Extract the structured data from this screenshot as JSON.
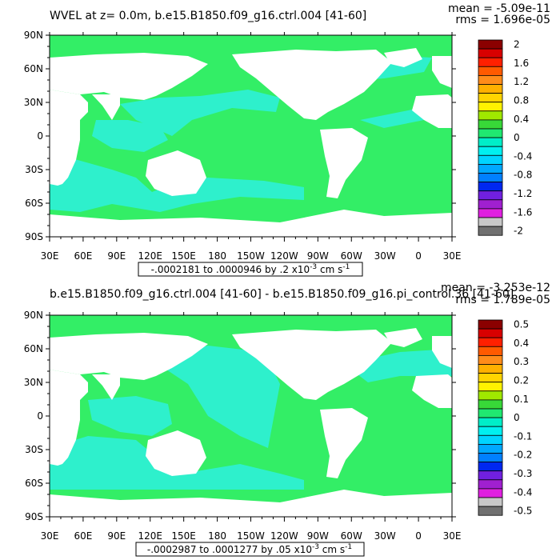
{
  "chart_data": [
    {
      "type": "heatmap",
      "title": "WVEL at z=    0.0m, b.e15.B1850.f09_g16.ctrl.004 [41-60]",
      "stats": {
        "mean": "mean = -5.09e-11",
        "rms": "rms = 1.696e-05"
      },
      "x_ticks": [
        "30E",
        "60E",
        "90E",
        "120E",
        "150E",
        "180",
        "150W",
        "120W",
        "90W",
        "60W",
        "30W",
        "0",
        "30E"
      ],
      "y_ticks": [
        "90N",
        "60N",
        "30N",
        "0",
        "30S",
        "60S",
        "90S"
      ],
      "colorbar": {
        "labels": [
          "2",
          "1.6",
          "1.2",
          "0.8",
          "0.4",
          "0",
          "-0.4",
          "-0.8",
          "-1.2",
          "-1.6",
          "-2"
        ],
        "colors": [
          "#8b0000",
          "#d80000",
          "#ff2000",
          "#ff5a00",
          "#ff8c1a",
          "#ffb000",
          "#ffd400",
          "#fff200",
          "#a0e800",
          "#38d838",
          "#20e870",
          "#00eec8",
          "#00f0f0",
          "#00d4ff",
          "#00a8ff",
          "#0080ff",
          "#0028f0",
          "#7020e0",
          "#a020d0",
          "#e020e0",
          "#c8c8c8",
          "#707070"
        ]
      },
      "range_label": "-.0002181 to .0000946 by .2 x10",
      "range_exp": "-3",
      "range_units": " cm s",
      "range_units_exp": "-1",
      "land_color": "#ffffff",
      "ocean_colors": {
        "near_zero": "#33ee66",
        "small_negative": "#2ef0cc"
      }
    },
    {
      "type": "heatmap",
      "title": "b.e15.B1850.f09_g16.ctrl.004 [41-60] - b.e15.B1850.f09_g16.pi_control.36 [41-60]",
      "stats": {
        "mean": "mean = -3.253e-12",
        "rms": "rms = 1.789e-05"
      },
      "x_ticks": [
        "30E",
        "60E",
        "90E",
        "120E",
        "150E",
        "180",
        "150W",
        "120W",
        "90W",
        "60W",
        "30W",
        "0",
        "30E"
      ],
      "y_ticks": [
        "90N",
        "60N",
        "30N",
        "0",
        "30S",
        "60S",
        "90S"
      ],
      "colorbar": {
        "labels": [
          "0.5",
          "0.4",
          "0.3",
          "0.2",
          "0.1",
          "0",
          "-0.1",
          "-0.2",
          "-0.3",
          "-0.4",
          "-0.5"
        ],
        "colors": [
          "#8b0000",
          "#d80000",
          "#ff2000",
          "#ff5a00",
          "#ff8c1a",
          "#ffb000",
          "#ffd400",
          "#fff200",
          "#a0e800",
          "#38d838",
          "#20e870",
          "#00eec8",
          "#00f0f0",
          "#00d4ff",
          "#00a8ff",
          "#0080ff",
          "#0028f0",
          "#7020e0",
          "#a020d0",
          "#e020e0",
          "#c8c8c8",
          "#707070"
        ]
      },
      "range_label": "-.0002987 to .0001277 by .05 x10",
      "range_exp": "-3",
      "range_units": " cm s",
      "range_units_exp": "-1",
      "land_color": "#ffffff",
      "ocean_colors": {
        "near_zero": "#33ee66",
        "small_negative": "#2ef0cc"
      }
    }
  ]
}
